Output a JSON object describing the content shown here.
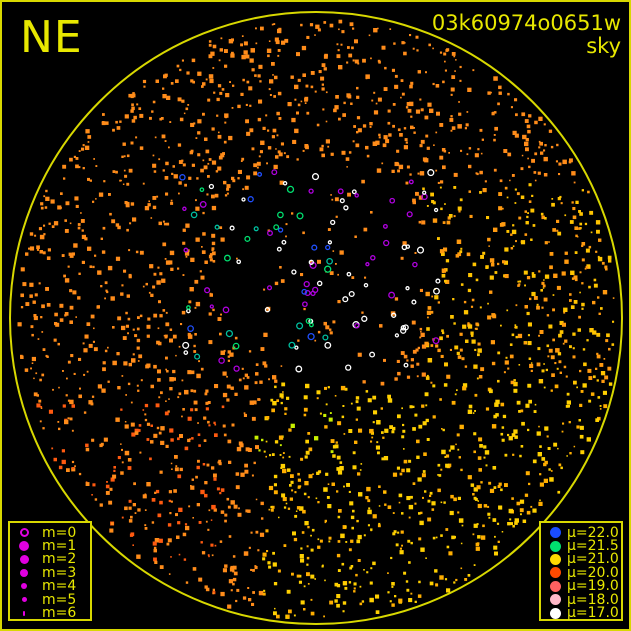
{
  "header": {
    "direction": "NE",
    "camera_id": "03k60974o0651w",
    "subtitle": "sky"
  },
  "colors": {
    "frame": "#d8d800",
    "text": "#e8e800",
    "magnitude_symbol": "#e000e0"
  },
  "magnitude_legend": [
    {
      "label": "m=0",
      "style": "ring"
    },
    {
      "label": "m=1",
      "style": "filled"
    },
    {
      "label": "m=2",
      "style": "filled"
    },
    {
      "label": "m=3",
      "style": "filled"
    },
    {
      "label": "m=4",
      "style": "filled"
    },
    {
      "label": "m=5",
      "style": "filled"
    },
    {
      "label": "m=6",
      "style": "filled"
    }
  ],
  "mu_legend": [
    {
      "label": "μ=22.0",
      "color": "#1a4cff"
    },
    {
      "label": "μ=21.5",
      "color": "#00e070"
    },
    {
      "label": "μ=21.0",
      "color": "#ffd800"
    },
    {
      "label": "μ=20.0",
      "color": "#ff4a00"
    },
    {
      "label": "μ=19.0",
      "color": "#ff6060"
    },
    {
      "label": "μ=18.0",
      "color": "#ffb8c8"
    },
    {
      "label": "μ=17.0",
      "color": "#ffffff"
    }
  ]
}
